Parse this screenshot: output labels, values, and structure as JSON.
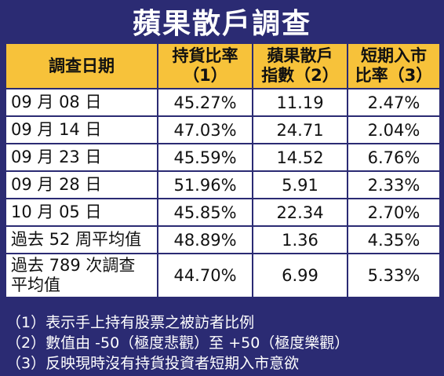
{
  "title": "蘋果散戶調查",
  "headers": [
    {
      "line1": "調查日期",
      "line2": ""
    },
    {
      "line1": "持貨比率",
      "line2": "（1）"
    },
    {
      "line1": "蘋果散戶",
      "line2": "指數（2）"
    },
    {
      "line1": "短期入市",
      "line2": "比率（3）"
    }
  ],
  "rows": [
    {
      "date_line1": "09 月 08 日",
      "date_line2": "",
      "holding_ratio": "45.27%",
      "index": "11.19",
      "entry_ratio": "2.47%"
    },
    {
      "date_line1": "09 月 14 日",
      "date_line2": "",
      "holding_ratio": "47.03%",
      "index": "24.71",
      "entry_ratio": "2.04%"
    },
    {
      "date_line1": "09 月 23 日",
      "date_line2": "",
      "holding_ratio": "45.59%",
      "index": "14.52",
      "entry_ratio": "6.76%"
    },
    {
      "date_line1": "09 月 28 日",
      "date_line2": "",
      "holding_ratio": "51.96%",
      "index": "5.91",
      "entry_ratio": "2.33%"
    },
    {
      "date_line1": "10 月 05 日",
      "date_line2": "",
      "holding_ratio": "45.85%",
      "index": "22.34",
      "entry_ratio": "2.70%"
    },
    {
      "date_line1": "過去 52 周平均值",
      "date_line2": "",
      "holding_ratio": "48.89%",
      "index": "1.36",
      "entry_ratio": "4.35%"
    },
    {
      "date_line1": "過去 789 次調查",
      "date_line2": "平均值",
      "holding_ratio": "44.70%",
      "index": "6.99",
      "entry_ratio": "5.33%"
    }
  ],
  "notes": [
    "（1）表示手上持有股票之被訪者比例",
    "（2）數值由 -50（極度悲觀）至 +50（極度樂觀）",
    "（3）反映現時沒有持貨投資者短期入市意欲"
  ],
  "colors": {
    "background": "#2b2b73",
    "header": "#f7c23a",
    "cell": "#ffffff",
    "notes_text": "#ffffff"
  }
}
